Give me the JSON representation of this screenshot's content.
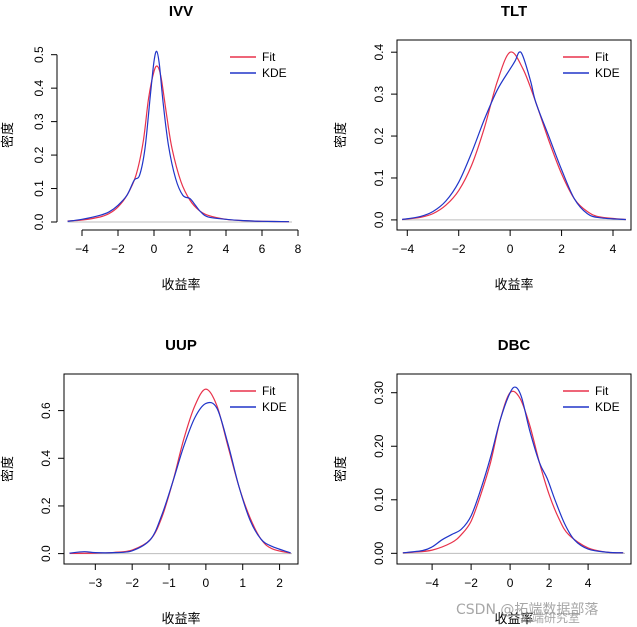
{
  "colors": {
    "fit": "#e8324b",
    "kde": "#2035c9",
    "zero_line": "#bdbdbd",
    "axis": "#000000"
  },
  "watermark": {
    "text": "CSDN @拓端数据部落",
    "overlay_text": "拓端研究室"
  },
  "chart_data": [
    {
      "type": "line",
      "title": "IVV",
      "xlabel": "收益率",
      "ylabel": "密度",
      "xlim": [
        -5,
        8
      ],
      "ylim": [
        0,
        0.52
      ],
      "xticks": [
        -4,
        -2,
        0,
        2,
        4,
        6,
        8
      ],
      "yticks": [
        0.0,
        0.1,
        0.2,
        0.3,
        0.4,
        0.5
      ],
      "ytick_labels": [
        "0.0",
        "0.1",
        "0.2",
        "0.3",
        "0.4",
        "0.5"
      ],
      "box": false,
      "legend": {
        "position": "top-right",
        "entries": [
          "Fit",
          "KDE"
        ]
      },
      "series": [
        {
          "name": "Fit",
          "x": [
            -4.8,
            -4,
            -3,
            -2.5,
            -2,
            -1.5,
            -1,
            -0.6,
            -0.3,
            0,
            0.2,
            0.4,
            0.7,
            1,
            1.5,
            2,
            2.5,
            3,
            4,
            5,
            6,
            7.5
          ],
          "y": [
            0.003,
            0.006,
            0.015,
            0.025,
            0.045,
            0.08,
            0.14,
            0.24,
            0.37,
            0.45,
            0.465,
            0.43,
            0.32,
            0.22,
            0.12,
            0.065,
            0.035,
            0.02,
            0.008,
            0.004,
            0.002,
            0.001
          ]
        },
        {
          "name": "KDE",
          "x": [
            -4.8,
            -4,
            -3,
            -2.5,
            -2,
            -1.5,
            -1.1,
            -0.8,
            -0.5,
            -0.2,
            0,
            0.15,
            0.3,
            0.5,
            0.8,
            1.2,
            1.6,
            2,
            2.3,
            2.6,
            3,
            4,
            5,
            6,
            7.5
          ],
          "y": [
            0.002,
            0.008,
            0.02,
            0.03,
            0.05,
            0.08,
            0.125,
            0.14,
            0.22,
            0.38,
            0.48,
            0.51,
            0.47,
            0.36,
            0.23,
            0.13,
            0.08,
            0.07,
            0.05,
            0.03,
            0.015,
            0.008,
            0.004,
            0.002,
            0.001
          ]
        }
      ]
    },
    {
      "type": "line",
      "title": "TLT",
      "xlabel": "收益率",
      "ylabel": "密度",
      "xlim": [
        -4.4,
        4.7
      ],
      "ylim": [
        -0.005,
        0.41
      ],
      "xticks": [
        -4,
        -2,
        0,
        2,
        4
      ],
      "yticks": [
        0.0,
        0.1,
        0.2,
        0.3,
        0.4
      ],
      "ytick_labels": [
        "0.0",
        "0.1",
        "0.2",
        "0.3",
        "0.4"
      ],
      "box": true,
      "legend": {
        "position": "top-right",
        "entries": [
          "Fit",
          "KDE"
        ]
      },
      "series": [
        {
          "name": "Fit",
          "x": [
            -4.2,
            -3.5,
            -3,
            -2.5,
            -2,
            -1.5,
            -1,
            -0.5,
            0,
            0.5,
            1,
            1.5,
            2,
            2.5,
            3,
            3.5,
            4.5
          ],
          "y": [
            0.001,
            0.006,
            0.015,
            0.035,
            0.07,
            0.13,
            0.22,
            0.33,
            0.4,
            0.36,
            0.28,
            0.19,
            0.11,
            0.05,
            0.02,
            0.007,
            0.001
          ]
        },
        {
          "name": "KDE",
          "x": [
            -4.2,
            -3.5,
            -3,
            -2.5,
            -2,
            -1.5,
            -1,
            -0.5,
            0,
            0.2,
            0.35,
            0.5,
            0.8,
            1,
            1.5,
            2,
            2.5,
            3,
            3.5,
            4.5
          ],
          "y": [
            0.001,
            0.008,
            0.02,
            0.045,
            0.09,
            0.16,
            0.24,
            0.31,
            0.36,
            0.38,
            0.4,
            0.39,
            0.33,
            0.28,
            0.2,
            0.12,
            0.05,
            0.015,
            0.005,
            0.001
          ]
        }
      ]
    },
    {
      "type": "line",
      "title": "UUP",
      "xlabel": "收益率",
      "ylabel": "密度",
      "xlim": [
        -3.85,
        2.5
      ],
      "ylim": [
        -0.01,
        0.72
      ],
      "xticks": [
        -3,
        -2,
        -1,
        0,
        1,
        2
      ],
      "yticks": [
        0.0,
        0.2,
        0.4,
        0.6
      ],
      "ytick_labels": [
        "0.0",
        "0.2",
        "0.4",
        "0.6"
      ],
      "box": true,
      "legend": {
        "position": "top-right",
        "entries": [
          "Fit",
          "KDE"
        ]
      },
      "series": [
        {
          "name": "Fit",
          "x": [
            -3.7,
            -3,
            -2.5,
            -2,
            -1.5,
            -1.2,
            -0.9,
            -0.6,
            -0.3,
            0,
            0.3,
            0.6,
            0.9,
            1.2,
            1.5,
            1.8,
            2.3
          ],
          "y": [
            0.001,
            0.002,
            0.005,
            0.015,
            0.06,
            0.15,
            0.3,
            0.48,
            0.62,
            0.69,
            0.62,
            0.45,
            0.28,
            0.15,
            0.06,
            0.02,
            0.002
          ]
        },
        {
          "name": "KDE",
          "x": [
            -3.7,
            -3.3,
            -3,
            -2.5,
            -2,
            -1.5,
            -1.2,
            -0.9,
            -0.6,
            -0.3,
            0,
            0.3,
            0.6,
            0.9,
            1.2,
            1.5,
            1.8,
            2.3
          ],
          "y": [
            0.002,
            0.008,
            0.004,
            0.004,
            0.012,
            0.06,
            0.16,
            0.3,
            0.45,
            0.57,
            0.63,
            0.61,
            0.46,
            0.28,
            0.14,
            0.06,
            0.03,
            0.003
          ]
        }
      ]
    },
    {
      "type": "line",
      "title": "DBC",
      "xlabel": "收益率",
      "ylabel": "密度",
      "xlim": [
        -5.8,
        6.2
      ],
      "ylim": [
        -0.005,
        0.32
      ],
      "xticks": [
        -4,
        -2,
        0,
        2,
        4
      ],
      "yticks": [
        0.0,
        0.1,
        0.2,
        0.3
      ],
      "ytick_labels": [
        "0.00",
        "0.10",
        "0.20",
        "0.30"
      ],
      "box": true,
      "legend": {
        "position": "top-right",
        "entries": [
          "Fit",
          "KDE"
        ]
      },
      "series": [
        {
          "name": "Fit",
          "x": [
            -5.5,
            -5,
            -4,
            -3,
            -2.5,
            -2,
            -1.5,
            -1,
            -0.5,
            0,
            0.5,
            1,
            1.5,
            2,
            2.5,
            3,
            4,
            5,
            5.8
          ],
          "y": [
            0.001,
            0.002,
            0.006,
            0.02,
            0.035,
            0.06,
            0.11,
            0.17,
            0.25,
            0.3,
            0.29,
            0.24,
            0.17,
            0.11,
            0.065,
            0.035,
            0.01,
            0.002,
            0.001
          ]
        },
        {
          "name": "KDE",
          "x": [
            -5.5,
            -4.5,
            -4,
            -3.5,
            -3,
            -2.5,
            -2,
            -1.5,
            -1,
            -0.5,
            0,
            0.3,
            0.6,
            1,
            1.5,
            1.9,
            2.3,
            2.8,
            3.3,
            4,
            5,
            5.8
          ],
          "y": [
            0.001,
            0.005,
            0.012,
            0.025,
            0.035,
            0.045,
            0.07,
            0.12,
            0.18,
            0.25,
            0.3,
            0.31,
            0.29,
            0.23,
            0.17,
            0.14,
            0.1,
            0.055,
            0.025,
            0.008,
            0.002,
            0.001
          ]
        }
      ]
    }
  ]
}
